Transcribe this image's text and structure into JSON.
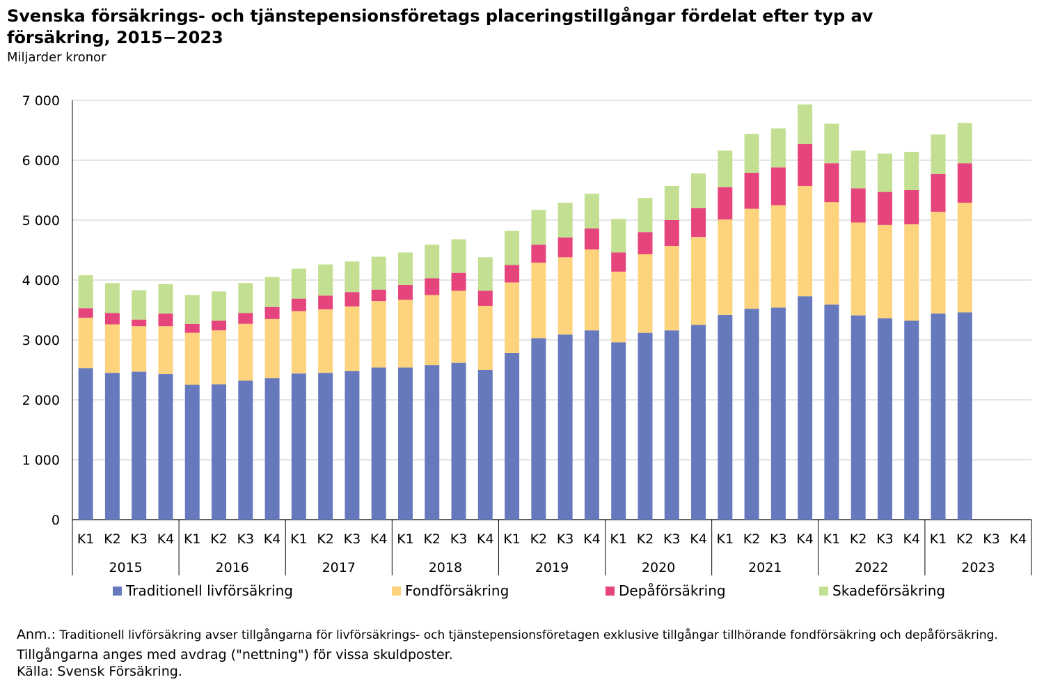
{
  "chart_data": {
    "type": "bar",
    "stacked": true,
    "title": "Svenska försäkrings- och tjänstepensionsföretags placeringstillgångar fördelat efter typ av försäkring, 2015−2023",
    "subtitle": "Miljarder kronor",
    "quarters": [
      "K1",
      "K2",
      "K3",
      "K4"
    ],
    "years": [
      "2015",
      "2016",
      "2017",
      "2018",
      "2019",
      "2020",
      "2021",
      "2022",
      "2023"
    ],
    "ylim": [
      0,
      7000
    ],
    "yticks": [
      0,
      1000,
      2000,
      3000,
      4000,
      5000,
      6000,
      7000
    ],
    "ytick_labels": [
      "0",
      "1 000",
      "2 000",
      "3 000",
      "4 000",
      "5 000",
      "6 000",
      "7 000"
    ],
    "grid": true,
    "legend_position": "bottom",
    "series": [
      {
        "name": "Traditionell livförsäkring",
        "color": "#6779bd",
        "values": [
          2530,
          2450,
          2470,
          2430,
          2250,
          2260,
          2320,
          2360,
          2440,
          2450,
          2480,
          2540,
          2540,
          2580,
          2620,
          2500,
          2780,
          3030,
          3090,
          3160,
          2960,
          3120,
          3160,
          3250,
          3420,
          3520,
          3540,
          3730,
          3590,
          3410,
          3360,
          3320,
          3440,
          3460,
          null,
          null
        ]
      },
      {
        "name": "Fondförsäkring",
        "color": "#fdd47d",
        "values": [
          840,
          810,
          760,
          800,
          870,
          900,
          950,
          990,
          1040,
          1060,
          1080,
          1110,
          1130,
          1170,
          1200,
          1070,
          1180,
          1260,
          1290,
          1350,
          1180,
          1310,
          1410,
          1470,
          1590,
          1670,
          1710,
          1840,
          1710,
          1550,
          1560,
          1610,
          1700,
          1830,
          null,
          null
        ]
      },
      {
        "name": "Depåförsäkring",
        "color": "#e6447d",
        "values": [
          160,
          190,
          110,
          210,
          150,
          160,
          180,
          200,
          210,
          230,
          240,
          190,
          250,
          280,
          300,
          250,
          290,
          300,
          330,
          350,
          320,
          370,
          430,
          480,
          540,
          600,
          630,
          700,
          650,
          570,
          550,
          570,
          630,
          660,
          null,
          null
        ]
      },
      {
        "name": "Skadeförsäkring",
        "color": "#c3df92",
        "values": [
          550,
          500,
          490,
          490,
          480,
          490,
          500,
          500,
          500,
          520,
          510,
          550,
          540,
          560,
          560,
          560,
          570,
          580,
          580,
          580,
          560,
          570,
          570,
          580,
          610,
          650,
          650,
          660,
          660,
          630,
          640,
          640,
          660,
          670,
          null,
          null
        ]
      }
    ]
  },
  "legend": {
    "items": [
      {
        "label": "Traditionell livförsäkring",
        "color": "#6779bd"
      },
      {
        "label": "Fondförsäkring",
        "color": "#fdd47d"
      },
      {
        "label": "Depåförsäkring",
        "color": "#e6447d"
      },
      {
        "label": "Skadeförsäkring",
        "color": "#c3df92"
      }
    ]
  },
  "notes": {
    "anm_label": "Anm.:",
    "anm_text_part1": "Traditionell livförsäkring avser tillgångarna för livförsäkrings- och tjänstepensionsföretagen exklusive tillgångar tillhörande fondförsäkring och depåförsäkring.",
    "anm_text_part2": "Tillgångarna anges med avdrag (\"nettning\") för vissa skuldposter.",
    "source": "Källa: Svensk Försäkring."
  }
}
